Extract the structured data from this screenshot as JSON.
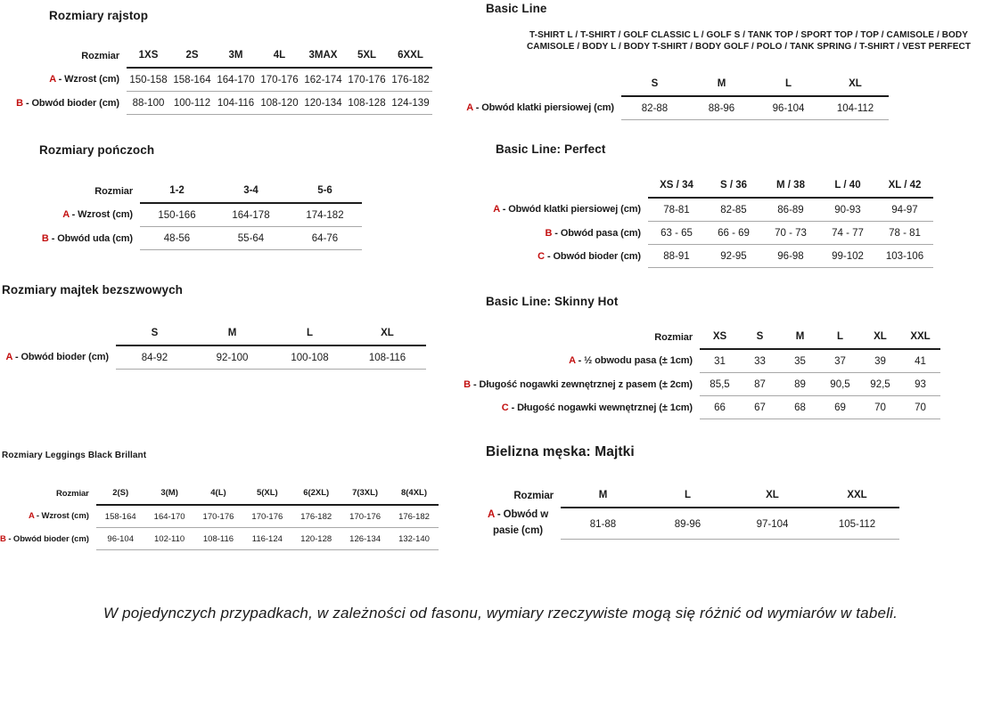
{
  "colors": {
    "accent_red": "#c31010",
    "text": "#1a1a1a",
    "header_rule": "#1c1c1c",
    "row_rule": "#a8a8a8"
  },
  "left_sections": [
    {
      "title": "Rozmiary rajstop",
      "table": {
        "corner_label": "Rozmiar",
        "columns": [
          "1XS",
          "2S",
          "3M",
          "4L",
          "3MAX",
          "5XL",
          "6XXL"
        ],
        "rows": [
          {
            "letter": "A",
            "label": "- Wzrost (cm)",
            "values": [
              "150-158",
              "158-164",
              "164-170",
              "170-176",
              "162-174",
              "170-176",
              "176-182"
            ]
          },
          {
            "letter": "B",
            "label": "- Obwód bioder (cm)",
            "values": [
              "88-100",
              "100-112",
              "104-116",
              "108-120",
              "120-134",
              "108-128",
              "124-139"
            ]
          }
        ]
      }
    },
    {
      "title": "Rozmiary pończoch",
      "table": {
        "corner_label": "Rozmiar",
        "columns": [
          "1-2",
          "3-4",
          "5-6"
        ],
        "rows": [
          {
            "letter": "A",
            "label": "- Wzrost (cm)",
            "values": [
              "150-166",
              "164-178",
              "174-182"
            ]
          },
          {
            "letter": "B",
            "label": "- Obwód uda (cm)",
            "values": [
              "48-56",
              "55-64",
              "64-76"
            ]
          }
        ]
      }
    },
    {
      "title": "Rozmiary majtek bezszwowych",
      "table": {
        "corner_label": "",
        "columns": [
          "S",
          "M",
          "L",
          "XL"
        ],
        "rows": [
          {
            "letter": "A",
            "label": "- Obwód bioder (cm)",
            "values": [
              "84-92",
              "92-100",
              "100-108",
              "108-116"
            ]
          }
        ]
      }
    },
    {
      "title": "Rozmiary Leggings Black Brillant",
      "table": {
        "corner_label": "Rozmiar",
        "columns": [
          "2(S)",
          "3(M)",
          "4(L)",
          "5(XL)",
          "6(2XL)",
          "7(3XL)",
          "8(4XL)"
        ],
        "rows": [
          {
            "letter": "A",
            "label": "- Wzrost (cm)",
            "values": [
              "158-164",
              "164-170",
              "170-176",
              "170-176",
              "176-182",
              "170-176",
              "176-182"
            ]
          },
          {
            "letter": "B",
            "label": "- Obwód bioder (cm)",
            "values": [
              "96-104",
              "102-110",
              "108-116",
              "116-124",
              "120-128",
              "126-134",
              "132-140"
            ]
          }
        ]
      }
    }
  ],
  "right_sections": [
    {
      "title": "Basic Line",
      "subtitle": "T-SHIRT L / T-SHIRT / GOLF CLASSIC L / GOLF S / TANK TOP / SPORT TOP / TOP / CAMISOLE / BODY CAMISOLE / BODY L / BODY T-SHIRT / BODY GOLF / POLO / TANK SPRING / T-SHIRT / VEST PERFECT",
      "table": {
        "corner_label": "",
        "columns": [
          "S",
          "M",
          "L",
          "XL"
        ],
        "rows": [
          {
            "letter": "A",
            "label": "- Obwód klatki piersiowej (cm)",
            "values": [
              "82-88",
              "88-96",
              "96-104",
              "104-112"
            ]
          }
        ]
      }
    },
    {
      "title": "Basic Line: Perfect",
      "table": {
        "corner_label": "",
        "columns": [
          "XS / 34",
          "S / 36",
          "M / 38",
          "L / 40",
          "XL / 42"
        ],
        "rows": [
          {
            "letter": "A",
            "label": "- Obwód klatki piersiowej (cm)",
            "values": [
              "78-81",
              "82-85",
              "86-89",
              "90-93",
              "94-97"
            ]
          },
          {
            "letter": "B",
            "label": "- Obwód pasa (cm)",
            "values": [
              "63 - 65",
              "66 - 69",
              "70 - 73",
              "74 - 77",
              "78 - 81"
            ]
          },
          {
            "letter": "C",
            "label": "- Obwód bioder (cm)",
            "values": [
              "88-91",
              "92-95",
              "96-98",
              "99-102",
              "103-106"
            ]
          }
        ]
      }
    },
    {
      "title": "Basic Line: Skinny Hot",
      "table": {
        "corner_label": "Rozmiar",
        "columns": [
          "XS",
          "S",
          "M",
          "L",
          "XL",
          "XXL"
        ],
        "rows": [
          {
            "letter": "A",
            "label": "- ½ obwodu pasa (± 1cm)",
            "values": [
              "31",
              "33",
              "35",
              "37",
              "39",
              "41"
            ]
          },
          {
            "letter": "B",
            "label": "- Długość nogawki zewnętrznej z pasem (± 2cm)",
            "values": [
              "85,5",
              "87",
              "89",
              "90,5",
              "92,5",
              "93"
            ]
          },
          {
            "letter": "C",
            "label": "- Długość nogawki wewnętrznej (± 1cm)",
            "values": [
              "66",
              "67",
              "68",
              "69",
              "70",
              "70"
            ]
          }
        ]
      }
    },
    {
      "title": "Bielizna męska: Majtki",
      "table": {
        "corner_label": "Rozmiar",
        "columns": [
          "M",
          "L",
          "XL",
          "XXL"
        ],
        "rows": [
          {
            "letter": "A",
            "label": "- Obwód w pasie (cm)",
            "values": [
              "81-88",
              "89-96",
              "97-104",
              "105-112"
            ]
          }
        ]
      }
    }
  ],
  "footer": {
    "note": "W pojedynczych przypadkach, w zależności od fasonu, wymiary rzeczywiste mogą się różnić od wymiarów w tabeli."
  }
}
